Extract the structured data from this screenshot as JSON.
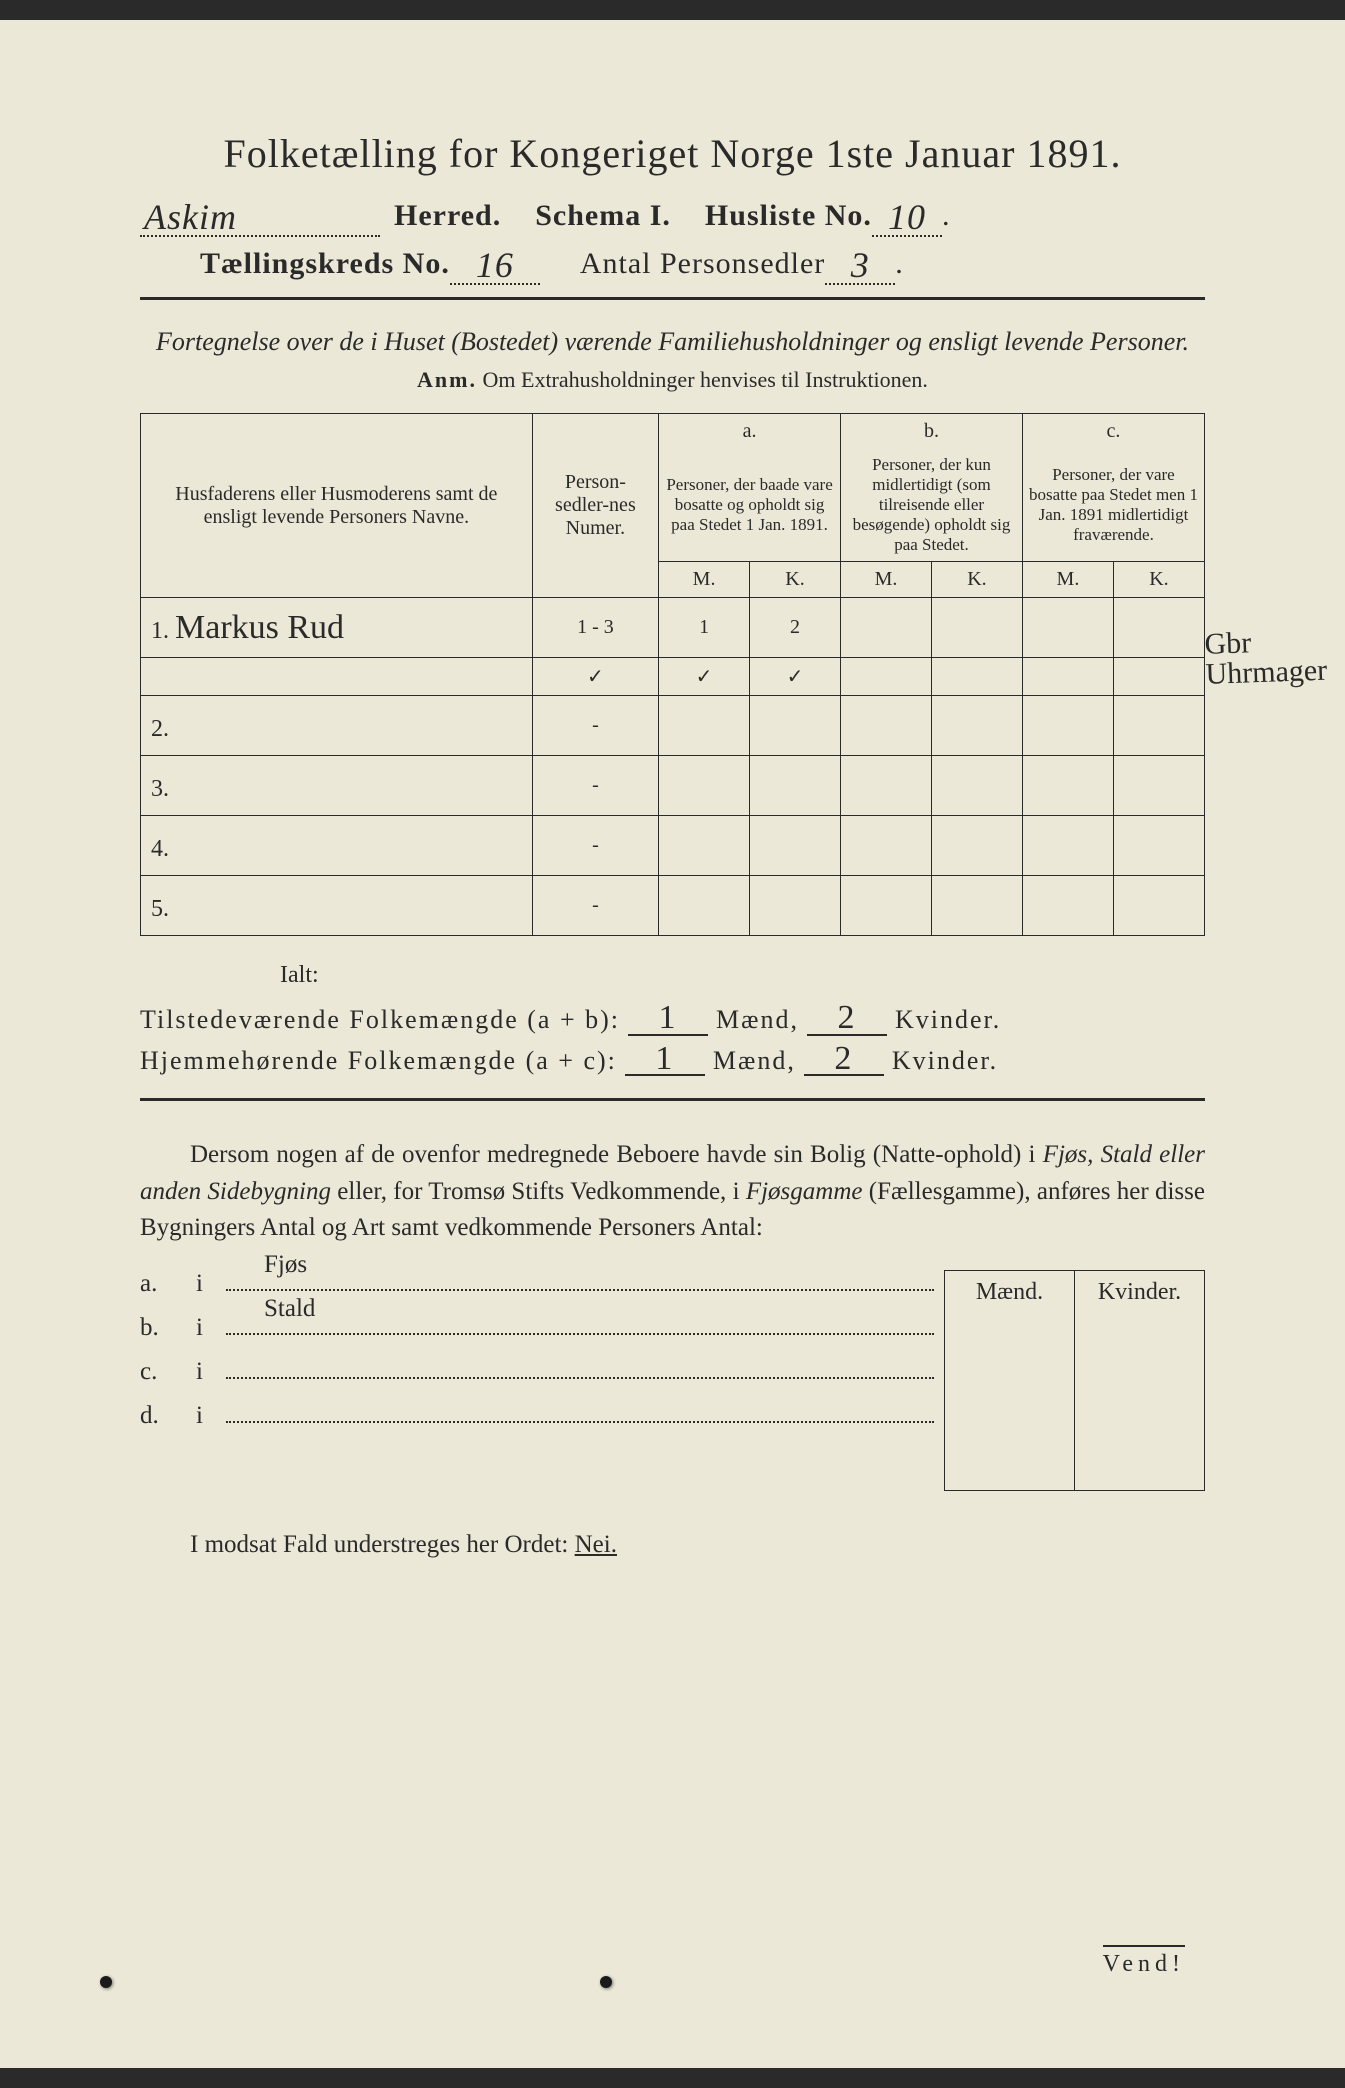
{
  "title": "Folketælling for Kongeriget Norge 1ste Januar 1891.",
  "header": {
    "herred_label": "Herred.",
    "herred_value": "Askim",
    "schema_label": "Schema I.",
    "husliste_label": "Husliste No.",
    "husliste_value": "10",
    "kreds_label": "Tællingskreds No.",
    "kreds_value": "16",
    "personsedler_label": "Antal Personsedler",
    "personsedler_value": "3"
  },
  "subtitle": "Fortegnelse over de i Huset (Bostedet) værende Familiehusholdninger og ensligt levende Personer.",
  "anm": {
    "label": "Anm.",
    "text": "Om Extrahusholdninger henvises til Instruktionen."
  },
  "table": {
    "col_name": "Husfaderens eller Husmoderens samt de ensligt levende Personers Navne.",
    "col_num": "Person-sedler-nes Numer.",
    "col_a_title": "a.",
    "col_a": "Personer, der baade vare bosatte og opholdt sig paa Stedet 1 Jan. 1891.",
    "col_b_title": "b.",
    "col_b": "Personer, der kun midlertidigt (som tilreisende eller besøgende) opholdt sig paa Stedet.",
    "col_c_title": "c.",
    "col_c": "Personer, der vare bosatte paa Stedet men 1 Jan. 1891 midlertidigt fraværende.",
    "m": "M.",
    "k": "K.",
    "rows": [
      {
        "n": "1.",
        "name": "Markus Rud",
        "num": "1 - 3",
        "am": "1",
        "ak": "2",
        "bm": "",
        "bk": "",
        "cm": "",
        "ck": ""
      },
      {
        "n": "2.",
        "name": "",
        "num": "-",
        "am": "",
        "ak": "",
        "bm": "",
        "bk": "",
        "cm": "",
        "ck": ""
      },
      {
        "n": "3.",
        "name": "",
        "num": "-",
        "am": "",
        "ak": "",
        "bm": "",
        "bk": "",
        "cm": "",
        "ck": ""
      },
      {
        "n": "4.",
        "name": "",
        "num": "-",
        "am": "",
        "ak": "",
        "bm": "",
        "bk": "",
        "cm": "",
        "ck": ""
      },
      {
        "n": "5.",
        "name": "",
        "num": "-",
        "am": "",
        "ak": "",
        "bm": "",
        "bk": "",
        "cm": "",
        "ck": ""
      }
    ],
    "checks": {
      "num": "✓",
      "am": "✓",
      "ak": "✓"
    },
    "margin_note": "Gbr\nUhrmager"
  },
  "ialt": "Ialt:",
  "totals": {
    "line1_label": "Tilstedeværende Folkemængde (a + b):",
    "line2_label": "Hjemmehørende Folkemængde (a + c):",
    "maend": "Mænd,",
    "kvinder": "Kvinder.",
    "t_m": "1",
    "t_k": "2",
    "h_m": "1",
    "h_k": "2"
  },
  "paragraph": {
    "p1": "Dersom nogen af de ovenfor medregnede Beboere havde sin Bolig (Natte-ophold) i ",
    "e1": "Fjøs, Stald eller anden Sidebygning",
    "p2": " eller, for Tromsø Stifts Vedkommende, i ",
    "e2": "Fjøsgamme",
    "p3": " (Fællesgamme), anføres her disse Bygningers Antal og Art samt vedkommende Personers Antal:"
  },
  "bygning": {
    "maend": "Mænd.",
    "kvinder": "Kvinder.",
    "rows": [
      {
        "lbl": "a.",
        "i": "i",
        "name": "Fjøs"
      },
      {
        "lbl": "b.",
        "i": "i",
        "name": "Stald"
      },
      {
        "lbl": "c.",
        "i": "i",
        "name": ""
      },
      {
        "lbl": "d.",
        "i": "i",
        "name": ""
      }
    ]
  },
  "nei_line": {
    "prefix": "I modsat Fald understreges her Ordet: ",
    "word": "Nei."
  },
  "vend": "Vend!",
  "colors": {
    "paper": "#ece8d8",
    "ink": "#2a2a2a",
    "bg": "#2a2a2a"
  }
}
